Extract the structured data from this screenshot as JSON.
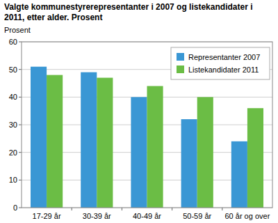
{
  "chart_data": {
    "type": "bar",
    "title": "Valgte kommunestyrerepresentanter i 2007 og listekandidater i 2011, etter alder. Prosent",
    "y_label": "Prosent",
    "categories": [
      "17-29 år",
      "30-39 år",
      "40-49 år",
      "50-59 år",
      "60 år og over"
    ],
    "series": [
      {
        "name": "Representanter 2007",
        "color": "#3a97d4",
        "values": [
          51,
          49,
          40,
          32,
          24
        ]
      },
      {
        "name": "Listekandidater 2011",
        "color": "#6bbd45",
        "values": [
          48,
          47,
          44,
          40,
          36
        ]
      }
    ],
    "ylim": [
      0,
      60
    ],
    "yticks": [
      0,
      10,
      20,
      30,
      40,
      50,
      60
    ],
    "grid": true,
    "legend": "top-right"
  }
}
